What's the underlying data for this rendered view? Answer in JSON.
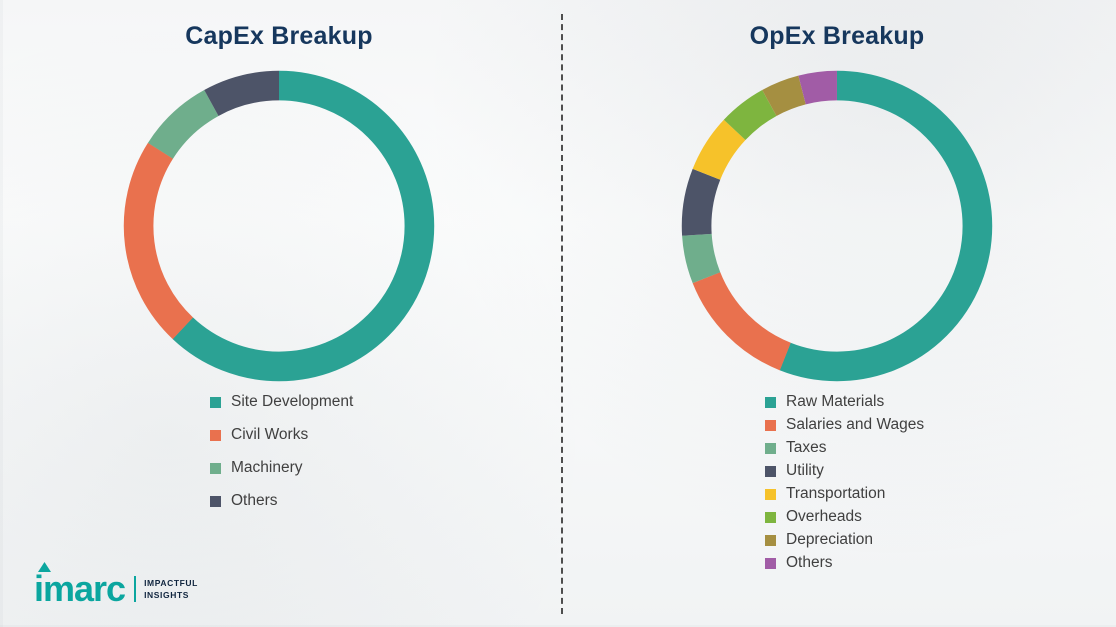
{
  "theme": {
    "title_color": "#16375D",
    "legend_text_color": "#404040",
    "divider_color": "#4E4E4E",
    "brand_teal": "#0BA69F"
  },
  "chart_data": [
    {
      "type": "pie",
      "subtype": "donut",
      "title": "CapEx Breakup",
      "legend_position": "bottom",
      "start_angle_deg": 0,
      "direction": "clockwise",
      "segments": [
        {
          "label": "Site Development",
          "value": 62,
          "color": "#2BA294"
        },
        {
          "label": "Civil Works",
          "value": 22,
          "color": "#E9714E"
        },
        {
          "label": "Machinery",
          "value": 8,
          "color": "#6FAE8C"
        },
        {
          "label": "Others",
          "value": 8,
          "color": "#4D5468"
        }
      ]
    },
    {
      "type": "pie",
      "subtype": "donut",
      "title": "OpEx Breakup",
      "legend_position": "bottom",
      "start_angle_deg": 0,
      "direction": "clockwise",
      "segments": [
        {
          "label": "Raw Materials",
          "value": 56,
          "color": "#2BA294"
        },
        {
          "label": "Salaries and Wages",
          "value": 13,
          "color": "#E9714E"
        },
        {
          "label": "Taxes",
          "value": 5,
          "color": "#6FAE8C"
        },
        {
          "label": "Utility",
          "value": 7,
          "color": "#4D5468"
        },
        {
          "label": "Transportation",
          "value": 6,
          "color": "#F6C22A"
        },
        {
          "label": "Overheads",
          "value": 5,
          "color": "#7EB53F"
        },
        {
          "label": "Depreciation",
          "value": 4,
          "color": "#A58F41"
        },
        {
          "label": "Others",
          "value": 4,
          "color": "#A15CA6"
        }
      ]
    }
  ],
  "logo": {
    "brand": "imarc",
    "tagline_line1": "IMPACTFUL",
    "tagline_line2": "INSIGHTS",
    "color": "#0BA69F"
  }
}
